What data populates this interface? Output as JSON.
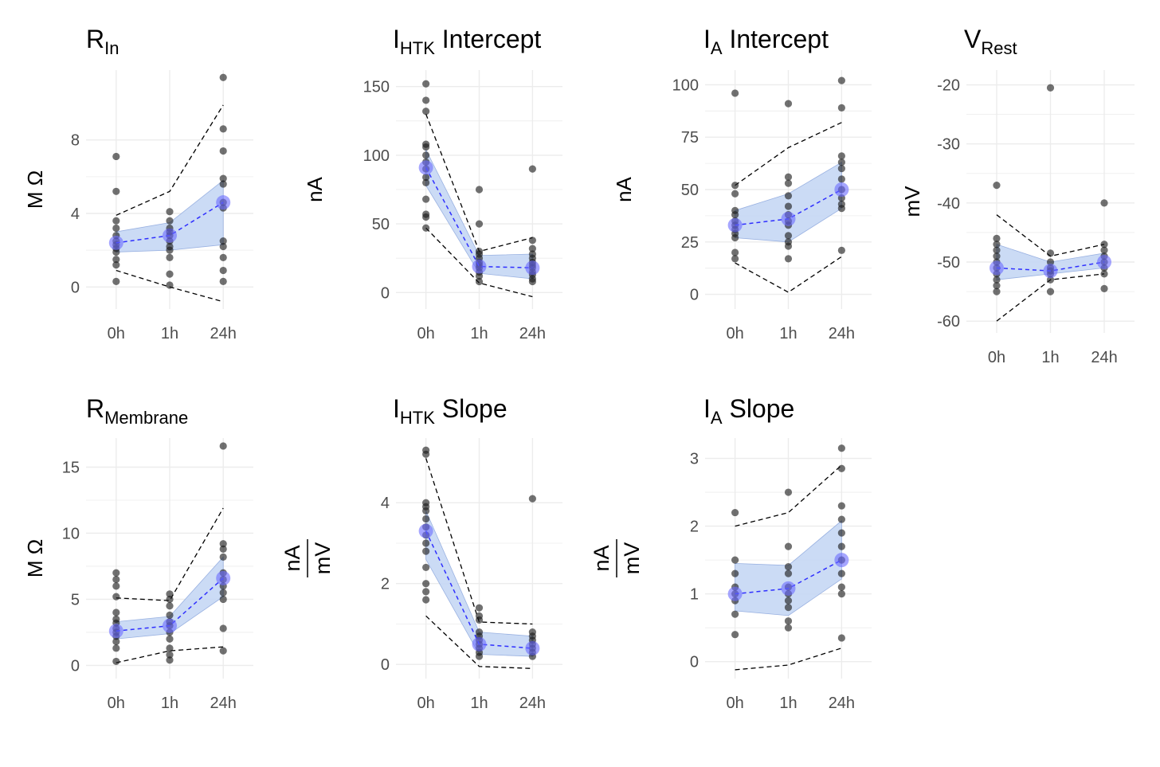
{
  "x_categories": [
    "0h",
    "1h",
    "24h"
  ],
  "style": {
    "point_color": "#1a1a1a",
    "mean_color": "#6b6bff",
    "ci_fill": "#c6d8f5",
    "ci_stroke": "#8fa9de",
    "bound_color": "#000000",
    "grid_color": "#ececec",
    "tick_color": "#4d4d4d"
  },
  "chart_data": [
    {
      "type": "scatter",
      "title": "R",
      "title_sub": "In",
      "ylabel": "M Ω",
      "ylabel_den": "",
      "ylim": [
        -1.2,
        11.8
      ],
      "yticks": [
        0,
        4,
        8
      ],
      "categories": [
        "0h",
        "1h",
        "24h"
      ],
      "points": [
        [
          0.3,
          1.2,
          1.5,
          1.9,
          2.1,
          2.3,
          2.5,
          2.8,
          3.2,
          3.6,
          5.2,
          7.1
        ],
        [
          0.1,
          0.7,
          1.6,
          2.0,
          2.2,
          2.5,
          2.8,
          3.0,
          3.2,
          3.6,
          4.1
        ],
        [
          0.3,
          0.9,
          1.6,
          2.2,
          2.5,
          4.3,
          4.6,
          5.6,
          5.9,
          7.4,
          8.6,
          11.4
        ]
      ],
      "mean": [
        2.4,
        2.8,
        4.6
      ],
      "ci_lower": [
        1.9,
        2.0,
        2.3
      ],
      "ci_upper": [
        3.0,
        3.5,
        5.8
      ],
      "bound_lower": [
        0.9,
        0.0,
        -0.8
      ],
      "bound_upper": [
        3.9,
        5.2,
        9.9
      ]
    },
    {
      "type": "scatter",
      "title": "I",
      "title_sub": "HTK",
      "title_suffix": " Intercept",
      "ylabel": "nA",
      "ylabel_den": "",
      "ylim": [
        -12,
        162
      ],
      "yticks": [
        0,
        50,
        100,
        150
      ],
      "categories": [
        "0h",
        "1h",
        "24h"
      ],
      "points": [
        [
          47,
          55,
          57,
          68,
          80,
          84,
          90,
          95,
          100,
          106,
          108,
          132,
          140,
          152
        ],
        [
          8,
          12,
          15,
          18,
          20,
          22,
          25,
          28,
          30,
          50,
          75
        ],
        [
          8,
          10,
          13,
          15,
          18,
          20,
          22,
          25,
          28,
          32,
          38,
          90
        ]
      ],
      "mean": [
        91,
        19,
        18
      ],
      "ci_lower": [
        78,
        14,
        10
      ],
      "ci_upper": [
        104,
        27,
        28
      ],
      "bound_lower": [
        47,
        7,
        -3
      ],
      "bound_upper": [
        130,
        30,
        40
      ]
    },
    {
      "type": "scatter",
      "title": "I",
      "title_sub": "A",
      "title_suffix": " Intercept",
      "ylabel": "nA",
      "ylabel_den": "",
      "ylim": [
        -7,
        107
      ],
      "yticks": [
        0,
        25,
        50,
        75,
        100
      ],
      "categories": [
        "0h",
        "1h",
        "24h"
      ],
      "points": [
        [
          17,
          20,
          27,
          29,
          31,
          33,
          35,
          38,
          40,
          48,
          52,
          96
        ],
        [
          17,
          23,
          25,
          28,
          33,
          35,
          38,
          42,
          47,
          53,
          56,
          91
        ],
        [
          21,
          41,
          43,
          46,
          50,
          55,
          60,
          63,
          66,
          89,
          102
        ]
      ],
      "mean": [
        33,
        36,
        50
      ],
      "ci_lower": [
        27,
        25,
        41
      ],
      "ci_upper": [
        40,
        48,
        63
      ],
      "bound_lower": [
        15,
        1,
        18
      ],
      "bound_upper": [
        52,
        70,
        82
      ]
    },
    {
      "type": "scatter",
      "title": "V",
      "title_sub": "Rest",
      "ylabel": "mV",
      "ylabel_den": "",
      "ylim": [
        -62,
        -17.5
      ],
      "yticks": [
        -60,
        -50,
        -40,
        -30,
        -20
      ],
      "categories": [
        "0h",
        "1h",
        "24h"
      ],
      "points": [
        [
          -55,
          -54,
          -53,
          -52,
          -51,
          -50,
          -49,
          -48,
          -47,
          -46,
          -37
        ],
        [
          -55,
          -53,
          -52,
          -51.5,
          -51,
          -50,
          -48.5,
          -20.5
        ],
        [
          -54.5,
          -52,
          -51,
          -50,
          -49,
          -48,
          -47,
          -40
        ]
      ],
      "mean": [
        -51,
        -51.5,
        -50
      ],
      "ci_lower": [
        -53,
        -52,
        -51
      ],
      "ci_upper": [
        -47,
        -50,
        -48.5
      ],
      "bound_lower": [
        -60,
        -53,
        -52
      ],
      "bound_upper": [
        -42,
        -49,
        -47
      ]
    },
    {
      "type": "scatter",
      "title": "R",
      "title_sub": "Membrane",
      "ylabel": "M Ω",
      "ylabel_den": "",
      "ylim": [
        -1,
        17.2
      ],
      "yticks": [
        0,
        5,
        10,
        15
      ],
      "categories": [
        "0h",
        "1h",
        "24h"
      ],
      "points": [
        [
          0.3,
          1.3,
          1.8,
          2.2,
          2.5,
          2.8,
          3.2,
          3.5,
          4.0,
          5.2,
          6.0,
          6.5,
          7.0
        ],
        [
          0.4,
          0.8,
          1.3,
          2.0,
          2.5,
          3.0,
          3.3,
          3.8,
          4.5,
          5.0,
          5.4
        ],
        [
          1.1,
          2.8,
          5.0,
          5.5,
          6.0,
          6.5,
          7.0,
          8.2,
          8.8,
          9.2,
          16.6
        ]
      ],
      "mean": [
        2.6,
        3.0,
        6.6
      ],
      "ci_lower": [
        2.0,
        2.4,
        5.2
      ],
      "ci_upper": [
        3.3,
        3.7,
        8.2
      ],
      "bound_lower": [
        0.2,
        1.1,
        1.4
      ],
      "bound_upper": [
        5.1,
        4.9,
        11.9
      ]
    },
    {
      "type": "scatter",
      "title": "I",
      "title_sub": "HTK",
      "title_suffix": " Slope",
      "ylabel": "nA",
      "ylabel_den": "mV",
      "ylim": [
        -0.35,
        5.6
      ],
      "yticks": [
        0,
        2,
        4
      ],
      "categories": [
        "0h",
        "1h",
        "24h"
      ],
      "points": [
        [
          1.6,
          1.8,
          2.0,
          2.4,
          2.8,
          3.0,
          3.2,
          3.4,
          3.6,
          3.8,
          3.9,
          4.0,
          5.2,
          5.3
        ],
        [
          0.2,
          0.3,
          0.4,
          0.5,
          0.6,
          0.7,
          0.8,
          1.1,
          1.2,
          1.4
        ],
        [
          0.2,
          0.3,
          0.4,
          0.5,
          0.6,
          0.7,
          0.8,
          4.1
        ]
      ],
      "mean": [
        3.3,
        0.5,
        0.4
      ],
      "ci_lower": [
        2.6,
        0.25,
        0.2
      ],
      "ci_upper": [
        3.8,
        0.8,
        0.7
      ],
      "bound_lower": [
        1.2,
        -0.05,
        -0.1
      ],
      "bound_upper": [
        5.1,
        1.05,
        1.0
      ]
    },
    {
      "type": "scatter",
      "title": "I",
      "title_sub": "A",
      "title_suffix": " Slope",
      "ylabel": "nA",
      "ylabel_den": "mV",
      "ylim": [
        -0.25,
        3.3
      ],
      "yticks": [
        0,
        1,
        2,
        3
      ],
      "categories": [
        "0h",
        "1h",
        "24h"
      ],
      "points": [
        [
          0.4,
          0.7,
          0.9,
          1.0,
          1.1,
          1.3,
          1.5,
          2.2
        ],
        [
          0.5,
          0.6,
          0.8,
          0.9,
          1.0,
          1.1,
          1.3,
          1.4,
          1.7,
          2.5
        ],
        [
          0.35,
          1.0,
          1.1,
          1.3,
          1.5,
          1.7,
          1.9,
          2.1,
          2.3,
          2.85,
          3.15
        ]
      ],
      "mean": [
        1.0,
        1.08,
        1.5
      ],
      "ci_lower": [
        0.75,
        0.68,
        1.22
      ],
      "ci_upper": [
        1.45,
        1.42,
        2.08
      ],
      "bound_lower": [
        -0.12,
        -0.05,
        0.2
      ],
      "bound_upper": [
        2.0,
        2.2,
        2.9
      ]
    }
  ]
}
